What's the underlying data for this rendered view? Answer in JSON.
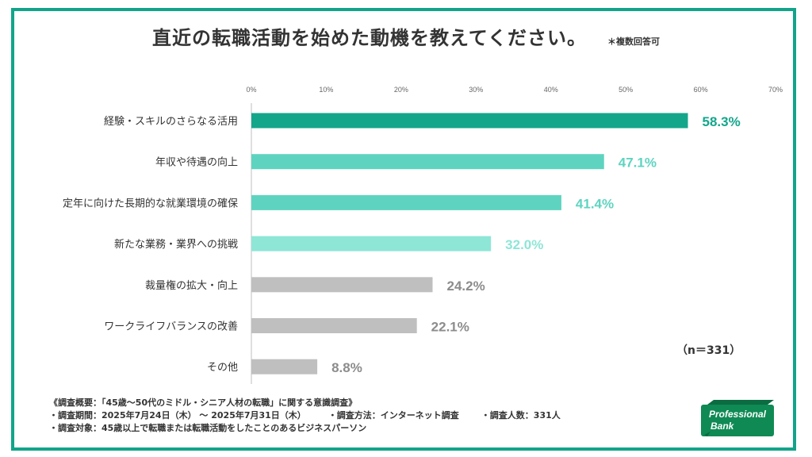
{
  "title": "直近の転職活動を始めた動機を教えてください。",
  "title_note": "＊複数回答可",
  "sample_size": "（n＝331）",
  "footer": {
    "overview": "《調査概要：「45歳～50代のミドル・シニア人材の転職」に関する意識調査》",
    "period": "・調査期間：2025年7月24日（木） ～ 2025年7月31日（木）",
    "method": "・調査方法：インターネット調査",
    "respondents": "・調査人数：331人",
    "target": "・調査対象：45歳以上で転職または転職活動をしたことのあるビジネスパーソン"
  },
  "logo": {
    "line1": "Professional",
    "line2": "Bank"
  },
  "colors": {
    "frame": "#12a48a",
    "bar_top": "#13a68b",
    "bar_high": "#5ed4c0",
    "bar_mid": "#8ee6d7",
    "bar_low": "#bfbfbf",
    "logo_bg": "#0f8a54"
  },
  "chart_data": {
    "type": "bar",
    "orientation": "horizontal",
    "categories": [
      "経験・スキルのさらなる活用",
      "年収や待遇の向上",
      "定年に向けた長期的な就業環境の確保",
      "新たな業務・業界への挑戦",
      "裁量権の拡大・向上",
      "ワークライフバランスの改善",
      "その他"
    ],
    "values": [
      58.3,
      47.1,
      41.4,
      32.0,
      24.2,
      22.1,
      8.8
    ],
    "value_labels": [
      "58.3%",
      "47.1%",
      "41.4%",
      "32.0%",
      "24.2%",
      "22.1%",
      "8.8%"
    ],
    "bar_colors": [
      "#13a68b",
      "#5ed4c0",
      "#5ed4c0",
      "#8ee6d7",
      "#bfbfbf",
      "#bfbfbf",
      "#bfbfbf"
    ],
    "label_colors": [
      "#13a68b",
      "#5ed4c0",
      "#5ed4c0",
      "#8ee6d7",
      "#8c8c8c",
      "#8c8c8c",
      "#8c8c8c"
    ],
    "xlim": [
      0,
      70
    ],
    "ticks": [
      0,
      10,
      20,
      30,
      40,
      50,
      60,
      70
    ],
    "tick_labels": [
      "0%",
      "10%",
      "20%",
      "30%",
      "40%",
      "50%",
      "60%",
      "70%"
    ],
    "grid": false,
    "legend": "none"
  }
}
